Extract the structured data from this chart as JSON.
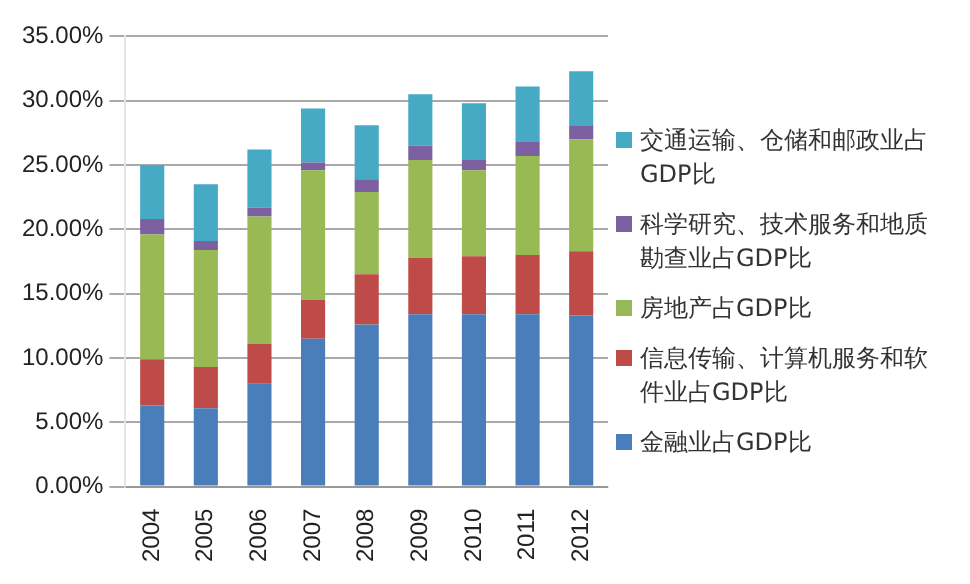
{
  "chart_data": {
    "type": "bar",
    "stacked": true,
    "categories": [
      "2004",
      "2005",
      "2006",
      "2007",
      "2008",
      "2009",
      "2010",
      "2011",
      "2012"
    ],
    "series": [
      {
        "name": "金融业占GDP比",
        "color": "#4a7ebb",
        "values": [
          6.3,
          6.1,
          8.0,
          11.5,
          12.6,
          13.4,
          13.4,
          13.4,
          13.3
        ]
      },
      {
        "name": "信息传输、计算机服务和软件业占GDP比",
        "color": "#be4b48",
        "values": [
          3.6,
          3.2,
          3.1,
          3.0,
          3.9,
          4.4,
          4.5,
          4.6,
          5.0
        ]
      },
      {
        "name": "房地产占GDP比",
        "color": "#98b954",
        "values": [
          9.7,
          9.1,
          9.9,
          10.1,
          6.4,
          7.6,
          6.7,
          7.7,
          8.7
        ]
      },
      {
        "name": "科学研究、技术服务和地质勘查业占GDP比",
        "color": "#7d60a0",
        "values": [
          1.2,
          0.7,
          0.7,
          0.6,
          1.0,
          1.1,
          0.8,
          1.1,
          1.1
        ]
      },
      {
        "name": "交通运输、仓储和邮政业占GDP比",
        "color": "#46aac5",
        "values": [
          4.2,
          4.4,
          4.5,
          4.2,
          4.2,
          4.0,
          4.4,
          4.3,
          4.2
        ]
      }
    ],
    "ylim": [
      0,
      35
    ],
    "yticks": [
      {
        "value": 0,
        "label": "0.00%"
      },
      {
        "value": 5,
        "label": "5.00%"
      },
      {
        "value": 10,
        "label": "10.00%"
      },
      {
        "value": 15,
        "label": "15.00%"
      },
      {
        "value": 20,
        "label": "20.00%"
      },
      {
        "value": 25,
        "label": "25.00%"
      },
      {
        "value": 30,
        "label": "30.00%"
      },
      {
        "value": 35,
        "label": "35.00%"
      }
    ],
    "grid": "y",
    "legend": "right"
  }
}
